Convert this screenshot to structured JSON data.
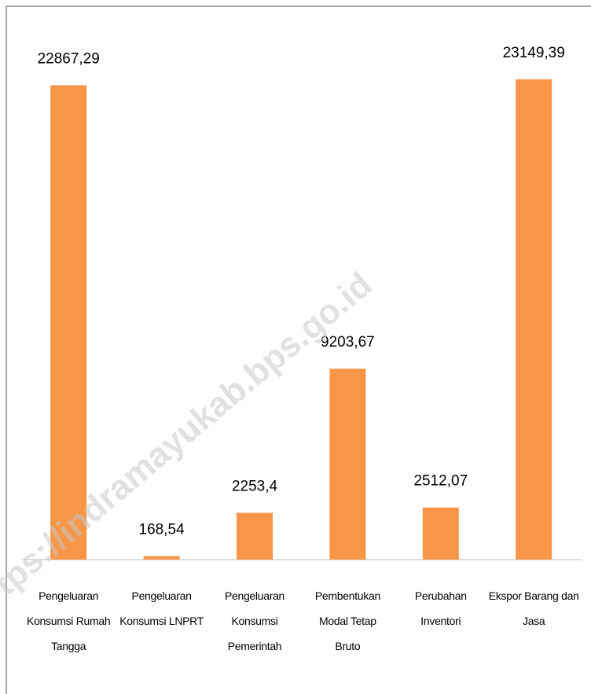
{
  "chart_data": {
    "type": "bar",
    "categories": [
      "Pengeluaran\nKonsumsi Rumah\nTangga",
      "Pengeluaran\nKonsumsi LNPRT",
      "Pengeluaran\nKonsumsi\nPemerintah",
      "Pembentukan\nModal Tetap\nBruto",
      "Perubahan\nInventori",
      "Ekspor Barang dan\nJasa"
    ],
    "values": [
      22867.29,
      168.54,
      2253.4,
      9203.67,
      2512.07,
      23149.39
    ],
    "value_labels": [
      "22867,29",
      "168,54",
      "2253,4",
      "9203,67",
      "2512,07",
      "23149,39"
    ],
    "color": "#f79646",
    "watermark": "tps://indramayukab.bps.go.id"
  }
}
